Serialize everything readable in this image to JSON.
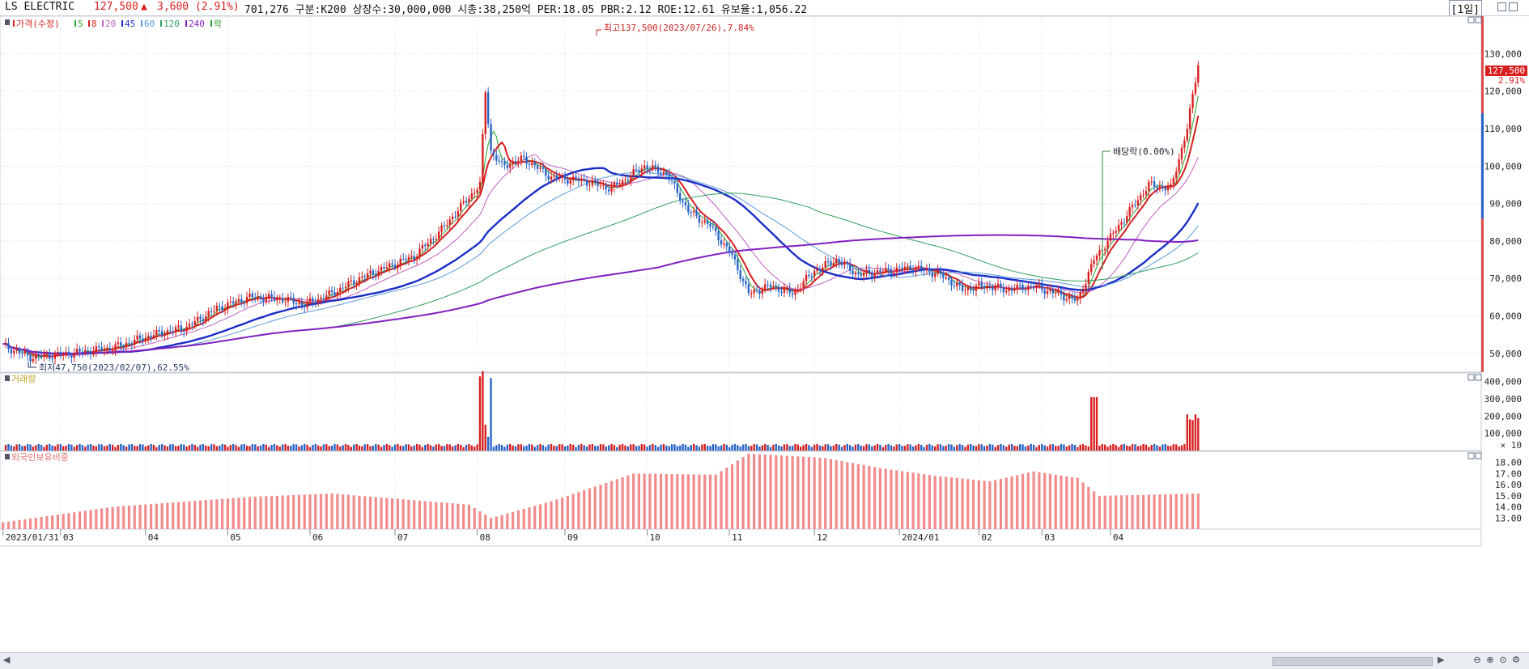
{
  "header": {
    "name": "LS ELECTRIC",
    "price": "127,500",
    "up_symbol": "▲",
    "change": "3,600 (2.91%)",
    "info": "701,276  구분:K200  상장수:30,000,000  시총:38,250억  PER:18.05  PBR:2.12  ROE:12.61  유보율:1,056.22",
    "period": "[1일]"
  },
  "price_panel": {
    "legend": [
      {
        "label": "가격(수정)",
        "color": "#d81e1e"
      },
      {
        "label": "5",
        "color": "#2aa52a"
      },
      {
        "label": "8",
        "color": "#d81e1e"
      },
      {
        "label": "20",
        "color": "#c060c0"
      },
      {
        "label": "45",
        "color": "#1a2ec8"
      },
      {
        "label": "60",
        "color": "#5a9ad8"
      },
      {
        "label": "120",
        "color": "#30a060"
      },
      {
        "label": "240",
        "color": "#8020c0"
      },
      {
        "label": "락",
        "color": "#2a9a2a"
      }
    ],
    "annotation_high": "최고137,500(2023/07/26),7.84%",
    "annotation_low": "최저47,750(2023/02/07),62.55%",
    "annotation_dividend": "배당락(0.00%)",
    "current_price_label": "127,500",
    "current_change_label": "2.91%",
    "y_ticks": [
      "130,000",
      "120,000",
      "110,000",
      "100,000",
      "90,000",
      "80,000",
      "70,000",
      "60,000",
      "50,000"
    ]
  },
  "volume_panel": {
    "title": "거래량",
    "y_ticks": [
      "400,000",
      "300,000",
      "200,000",
      "100,000"
    ],
    "unit": "× 10"
  },
  "foreign_panel": {
    "title": "외국인보유비중",
    "y_ticks": [
      "18.00",
      "17.00",
      "16.00",
      "15.00",
      "14.00",
      "13.00"
    ]
  },
  "x_axis": {
    "ticks": [
      "2023/01/31",
      "03",
      "04",
      "05",
      "06",
      "07",
      "08",
      "09",
      "10",
      "11",
      "12",
      "2024/01",
      "02",
      "03",
      "04"
    ]
  },
  "colors": {
    "up": "#d81e1e",
    "down": "#2763c8",
    "bar": "#f28b8b",
    "grid": "#e4e8ef"
  },
  "chart_data": {
    "type": "candlestick",
    "price_ylim": [
      45000,
      140000
    ],
    "volume_ylim": [
      0,
      450000
    ],
    "foreign_ylim": [
      12.0,
      19.0
    ],
    "key_points": [
      {
        "date": "2023/01/31",
        "close": 52000
      },
      {
        "date": "2023/02/07",
        "low": 47750
      },
      {
        "date": "2023/03",
        "close": 52000
      },
      {
        "date": "2023/04",
        "close": 58000
      },
      {
        "date": "2023/05",
        "close": 65000
      },
      {
        "date": "2023/06",
        "close": 66000
      },
      {
        "date": "2023/07/26",
        "high": 137500
      },
      {
        "date": "2023/08",
        "close": 100000
      },
      {
        "date": "2023/09",
        "close": 95000
      },
      {
        "date": "2023/10",
        "close": 88000
      },
      {
        "date": "2023/11",
        "close": 64000
      },
      {
        "date": "2023/12",
        "close": 74000
      },
      {
        "date": "2024/01",
        "close": 73000
      },
      {
        "date": "2024/02",
        "close": 67000
      },
      {
        "date": "2024/03",
        "close": 78000
      },
      {
        "date": "2024/04",
        "close": 127500
      }
    ]
  }
}
